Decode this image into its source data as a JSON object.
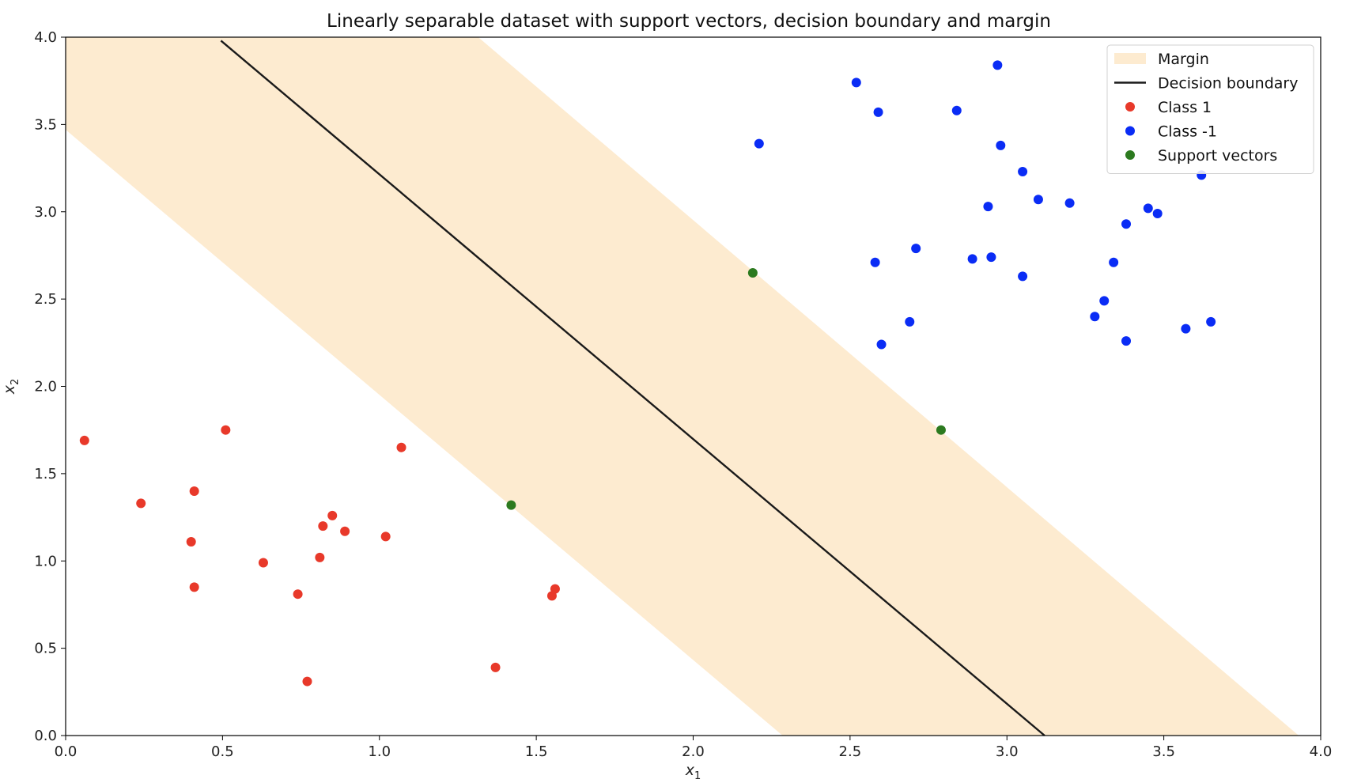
{
  "chart_data": {
    "type": "scatter",
    "title": "Linearly separable dataset with support vectors, decision boundary and margin",
    "xlabel_base": "x",
    "xlabel_sub": "1",
    "ylabel_base": "x",
    "ylabel_sub": "2",
    "xlim": [
      0.0,
      4.0
    ],
    "ylim": [
      0.0,
      4.0
    ],
    "xticks": [
      "0.0",
      "0.5",
      "1.0",
      "1.5",
      "2.0",
      "2.5",
      "3.0",
      "3.5",
      "4.0"
    ],
    "yticks": [
      "0.0",
      "0.5",
      "1.0",
      "1.5",
      "2.0",
      "2.5",
      "3.0",
      "3.5",
      "4.0"
    ],
    "grid": false,
    "legend_position": "top-right",
    "colors": {
      "class1": "#e8392a",
      "class_neg1": "#0a2cf5",
      "support": "#2c7a1f",
      "boundary": "#1a1a1a",
      "margin": "#fdebd0"
    },
    "legend": [
      {
        "key": "margin",
        "label": "Margin",
        "kind": "patch"
      },
      {
        "key": "boundary",
        "label": "Decision boundary",
        "kind": "line"
      },
      {
        "key": "class1",
        "label": "Class 1",
        "kind": "dot"
      },
      {
        "key": "class_neg1",
        "label": "Class -1",
        "kind": "dot"
      },
      {
        "key": "support",
        "label": "Support vectors",
        "kind": "dot"
      }
    ],
    "decision_boundary": [
      [
        0.495,
        3.98
      ],
      [
        3.12,
        0.0
      ]
    ],
    "margin_upper": [
      [
        1.315,
        4.0
      ],
      [
        3.93,
        0.0
      ]
    ],
    "margin_lower": [
      [
        0.0,
        3.47
      ],
      [
        2.285,
        0.0
      ]
    ],
    "series": [
      {
        "name": "Class 1",
        "key": "class1",
        "points": [
          [
            0.06,
            1.69
          ],
          [
            0.24,
            1.33
          ],
          [
            0.41,
            1.4
          ],
          [
            0.51,
            1.75
          ],
          [
            0.4,
            1.11
          ],
          [
            0.41,
            0.85
          ],
          [
            0.63,
            0.99
          ],
          [
            0.74,
            0.81
          ],
          [
            0.77,
            0.31
          ],
          [
            0.81,
            1.02
          ],
          [
            0.82,
            1.2
          ],
          [
            0.85,
            1.26
          ],
          [
            0.89,
            1.17
          ],
          [
            1.02,
            1.14
          ],
          [
            1.07,
            1.65
          ],
          [
            1.37,
            0.39
          ],
          [
            1.55,
            0.8
          ],
          [
            1.56,
            0.84
          ]
        ]
      },
      {
        "name": "Class -1",
        "key": "class_neg1",
        "points": [
          [
            2.21,
            3.39
          ],
          [
            2.52,
            3.74
          ],
          [
            2.59,
            3.57
          ],
          [
            2.58,
            2.71
          ],
          [
            2.6,
            2.24
          ],
          [
            2.69,
            2.37
          ],
          [
            2.71,
            2.79
          ],
          [
            2.84,
            3.58
          ],
          [
            2.89,
            2.73
          ],
          [
            2.94,
            3.03
          ],
          [
            2.95,
            2.74
          ],
          [
            2.97,
            3.84
          ],
          [
            2.98,
            3.38
          ],
          [
            3.05,
            3.23
          ],
          [
            3.05,
            2.63
          ],
          [
            3.1,
            3.07
          ],
          [
            3.2,
            3.05
          ],
          [
            3.28,
            2.4
          ],
          [
            3.31,
            2.49
          ],
          [
            3.34,
            2.71
          ],
          [
            3.38,
            2.93
          ],
          [
            3.38,
            2.26
          ],
          [
            3.45,
            3.02
          ],
          [
            3.48,
            2.99
          ],
          [
            3.57,
            2.33
          ],
          [
            3.62,
            3.21
          ],
          [
            3.65,
            2.37
          ]
        ]
      },
      {
        "name": "Support vectors",
        "key": "support",
        "points": [
          [
            1.42,
            1.32
          ],
          [
            2.19,
            2.65
          ],
          [
            2.79,
            1.75
          ]
        ]
      }
    ]
  }
}
